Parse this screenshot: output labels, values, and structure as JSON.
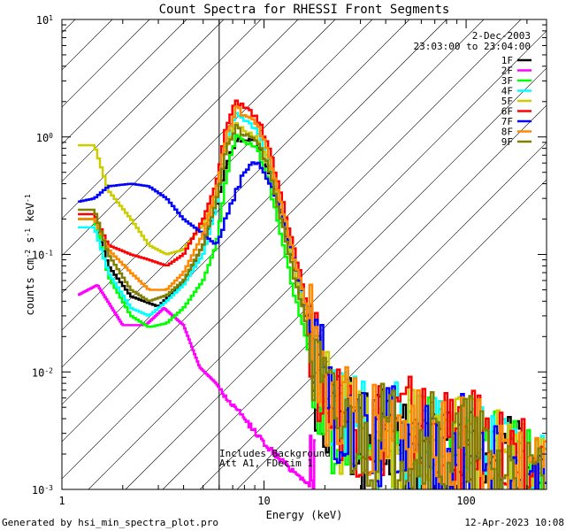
{
  "chart_data": {
    "type": "line",
    "title": "Count Spectra for RHESSI Front Segments",
    "xlabel": "Energy (keV)",
    "ylabel_base": "counts cm",
    "ylabel_sup1": "-2",
    "ylabel_mid1": " s",
    "ylabel_sup2": "-1",
    "ylabel_mid2": " keV",
    "ylabel_sup3": "-1",
    "xscale": "log",
    "yscale": "log",
    "xlim": [
      1,
      250
    ],
    "ylim": [
      0.001,
      10
    ],
    "x_ticks": [
      {
        "value": 1,
        "label": "1"
      },
      {
        "value": 10,
        "label": "10"
      },
      {
        "value": 100,
        "label": "100"
      }
    ],
    "y_ticks": [
      {
        "value": 0.001,
        "base": "10",
        "exp": "-3"
      },
      {
        "value": 0.01,
        "base": "10",
        "exp": "-2"
      },
      {
        "value": 0.1,
        "base": "10",
        "exp": "-1"
      },
      {
        "value": 1,
        "base": "10",
        "exp": "0"
      },
      {
        "value": 10,
        "base": "10",
        "exp": "1"
      }
    ],
    "hatched_region_max_energy": 6,
    "legend": {
      "date": "2-Dec-2003",
      "time_range": "23:03:00 to 23:04:00",
      "placement": "top-right"
    },
    "annotation_lines": [
      "Includes Background",
      "Att A1, FDecim 1"
    ],
    "series": [
      {
        "name": "1F",
        "color": "#000000",
        "anchors": [
          [
            1.2,
            0.2
          ],
          [
            1.45,
            0.2
          ],
          [
            1.7,
            0.08
          ],
          [
            2.2,
            0.044
          ],
          [
            3,
            0.036
          ],
          [
            4,
            0.058
          ],
          [
            5,
            0.12
          ],
          [
            5.8,
            0.25
          ],
          [
            6.5,
            0.6
          ],
          [
            7.3,
            0.95
          ],
          [
            8.2,
            0.95
          ],
          [
            9.2,
            0.9
          ],
          [
            10.5,
            0.55
          ],
          [
            12,
            0.25
          ],
          [
            14,
            0.08
          ],
          [
            16,
            0.03
          ],
          [
            18,
            0.009
          ],
          [
            22,
            0.004
          ],
          [
            28,
            0.0028
          ],
          [
            35,
            0.0023
          ],
          [
            45,
            0.0025
          ],
          [
            60,
            0.0022
          ],
          [
            80,
            0.0018
          ],
          [
            100,
            0.0021
          ],
          [
            140,
            0.0016
          ],
          [
            190,
            0.0012
          ],
          [
            250,
            0.001
          ]
        ],
        "noise": 0.6
      },
      {
        "name": "2F",
        "color": "#ff00ff",
        "anchors": [
          [
            1.2,
            0.045
          ],
          [
            1.5,
            0.055
          ],
          [
            2,
            0.025
          ],
          [
            2.6,
            0.025
          ],
          [
            3.2,
            0.035
          ],
          [
            4,
            0.025
          ],
          [
            4.8,
            0.011
          ],
          [
            5.8,
            0.008
          ],
          [
            6.5,
            0.006
          ],
          [
            8,
            0.004
          ],
          [
            10,
            0.0025
          ],
          [
            12,
            0.0018
          ],
          [
            15,
            0.0013
          ],
          [
            18,
            0.001
          ]
        ],
        "noise": 0.6
      },
      {
        "name": "3F",
        "color": "#00ff00",
        "anchors": [
          [
            1.2,
            0.2
          ],
          [
            1.45,
            0.2
          ],
          [
            1.7,
            0.065
          ],
          [
            2.2,
            0.03
          ],
          [
            2.7,
            0.024
          ],
          [
            3.3,
            0.026
          ],
          [
            4,
            0.035
          ],
          [
            5,
            0.06
          ],
          [
            5.8,
            0.12
          ],
          [
            6.5,
            0.45
          ],
          [
            7.3,
            1.05
          ],
          [
            8.2,
            0.9
          ],
          [
            9.2,
            0.8
          ],
          [
            10.5,
            0.45
          ],
          [
            12,
            0.15
          ],
          [
            14,
            0.05
          ],
          [
            16,
            0.02
          ],
          [
            18,
            0.007
          ],
          [
            22,
            0.0035
          ],
          [
            28,
            0.003
          ],
          [
            35,
            0.0025
          ],
          [
            45,
            0.0028
          ],
          [
            60,
            0.0024
          ],
          [
            80,
            0.002
          ],
          [
            100,
            0.0022
          ],
          [
            140,
            0.0016
          ],
          [
            190,
            0.0013
          ],
          [
            250,
            0.001
          ]
        ],
        "noise": 0.6
      },
      {
        "name": "4F",
        "color": "#00ffff",
        "anchors": [
          [
            1.2,
            0.17
          ],
          [
            1.45,
            0.17
          ],
          [
            1.7,
            0.07
          ],
          [
            2.2,
            0.035
          ],
          [
            2.7,
            0.03
          ],
          [
            3.3,
            0.04
          ],
          [
            4,
            0.055
          ],
          [
            5,
            0.1
          ],
          [
            5.8,
            0.25
          ],
          [
            6.5,
            0.9
          ],
          [
            7.3,
            1.6
          ],
          [
            8.2,
            1.35
          ],
          [
            9.2,
            1.15
          ],
          [
            10.5,
            0.65
          ],
          [
            12,
            0.28
          ],
          [
            14,
            0.09
          ],
          [
            16,
            0.035
          ],
          [
            18,
            0.01
          ],
          [
            22,
            0.0045
          ],
          [
            28,
            0.0032
          ],
          [
            35,
            0.0027
          ],
          [
            45,
            0.003
          ],
          [
            60,
            0.0025
          ],
          [
            80,
            0.002
          ],
          [
            100,
            0.0022
          ],
          [
            140,
            0.0017
          ],
          [
            190,
            0.0013
          ],
          [
            250,
            0.001
          ]
        ],
        "noise": 0.6
      },
      {
        "name": "5F",
        "color": "#cccc00",
        "anchors": [
          [
            1.2,
            0.85
          ],
          [
            1.45,
            0.85
          ],
          [
            1.7,
            0.35
          ],
          [
            2.2,
            0.2
          ],
          [
            2.7,
            0.12
          ],
          [
            3.3,
            0.1
          ],
          [
            4,
            0.11
          ],
          [
            5,
            0.18
          ],
          [
            5.8,
            0.3
          ],
          [
            6.5,
            0.8
          ],
          [
            7.3,
            1.3
          ],
          [
            8.2,
            1.1
          ],
          [
            9.2,
            1.0
          ],
          [
            10.5,
            0.6
          ],
          [
            12,
            0.25
          ],
          [
            14,
            0.08
          ],
          [
            16,
            0.03
          ],
          [
            18,
            0.009
          ],
          [
            22,
            0.0045
          ],
          [
            28,
            0.0035
          ],
          [
            35,
            0.003
          ],
          [
            45,
            0.0032
          ],
          [
            60,
            0.0028
          ],
          [
            80,
            0.0022
          ],
          [
            100,
            0.0024
          ],
          [
            140,
            0.0018
          ],
          [
            190,
            0.0014
          ],
          [
            250,
            0.0011
          ]
        ],
        "noise": 0.6
      },
      {
        "name": "6F",
        "color": "#ff0000",
        "anchors": [
          [
            1.2,
            0.22
          ],
          [
            1.45,
            0.22
          ],
          [
            1.7,
            0.12
          ],
          [
            2.2,
            0.1
          ],
          [
            2.7,
            0.09
          ],
          [
            3.3,
            0.08
          ],
          [
            4,
            0.1
          ],
          [
            5,
            0.2
          ],
          [
            5.8,
            0.4
          ],
          [
            6.5,
            1.2
          ],
          [
            7.3,
            2.0
          ],
          [
            8.2,
            1.75
          ],
          [
            9.2,
            1.5
          ],
          [
            10.5,
            0.85
          ],
          [
            12,
            0.35
          ],
          [
            14,
            0.12
          ],
          [
            16,
            0.045
          ],
          [
            18,
            0.013
          ],
          [
            22,
            0.005
          ],
          [
            28,
            0.0035
          ],
          [
            35,
            0.003
          ],
          [
            45,
            0.0033
          ],
          [
            60,
            0.0028
          ],
          [
            80,
            0.0022
          ],
          [
            100,
            0.0025
          ],
          [
            140,
            0.0018
          ],
          [
            190,
            0.0014
          ],
          [
            250,
            0.0011
          ]
        ],
        "noise": 0.6
      },
      {
        "name": "7F",
        "color": "#0000ff",
        "anchors": [
          [
            1.2,
            0.28
          ],
          [
            1.45,
            0.3
          ],
          [
            1.7,
            0.38
          ],
          [
            2.2,
            0.4
          ],
          [
            2.7,
            0.38
          ],
          [
            3.3,
            0.3
          ],
          [
            4,
            0.2
          ],
          [
            5,
            0.15
          ],
          [
            5.8,
            0.12
          ],
          [
            6.5,
            0.2
          ],
          [
            7.3,
            0.35
          ],
          [
            8.2,
            0.55
          ],
          [
            9.2,
            0.6
          ],
          [
            10.5,
            0.45
          ],
          [
            12,
            0.25
          ],
          [
            14,
            0.1
          ],
          [
            16,
            0.04
          ],
          [
            18,
            0.012
          ],
          [
            22,
            0.005
          ],
          [
            28,
            0.003
          ],
          [
            35,
            0.0025
          ],
          [
            45,
            0.0028
          ],
          [
            60,
            0.0024
          ],
          [
            80,
            0.002
          ],
          [
            100,
            0.0022
          ],
          [
            140,
            0.0016
          ],
          [
            190,
            0.0013
          ],
          [
            250,
            0.001
          ]
        ],
        "noise": 0.6
      },
      {
        "name": "8F",
        "color": "#ff8800",
        "anchors": [
          [
            1.2,
            0.2
          ],
          [
            1.45,
            0.2
          ],
          [
            1.7,
            0.11
          ],
          [
            2.2,
            0.07
          ],
          [
            2.7,
            0.05
          ],
          [
            3.3,
            0.05
          ],
          [
            4,
            0.07
          ],
          [
            5,
            0.15
          ],
          [
            5.8,
            0.35
          ],
          [
            6.5,
            1.0
          ],
          [
            7.3,
            1.75
          ],
          [
            8.2,
            1.5
          ],
          [
            9.2,
            1.3
          ],
          [
            10.5,
            0.75
          ],
          [
            12,
            0.3
          ],
          [
            14,
            0.1
          ],
          [
            16,
            0.04
          ],
          [
            18,
            0.011
          ],
          [
            22,
            0.0045
          ],
          [
            28,
            0.0033
          ],
          [
            35,
            0.0028
          ],
          [
            45,
            0.0031
          ],
          [
            60,
            0.0026
          ],
          [
            80,
            0.0021
          ],
          [
            100,
            0.0023
          ],
          [
            140,
            0.0017
          ],
          [
            190,
            0.0013
          ],
          [
            250,
            0.001
          ]
        ],
        "noise": 0.6
      },
      {
        "name": "9F",
        "color": "#808000",
        "anchors": [
          [
            1.2,
            0.24
          ],
          [
            1.45,
            0.24
          ],
          [
            1.7,
            0.1
          ],
          [
            2.2,
            0.05
          ],
          [
            2.7,
            0.04
          ],
          [
            3.3,
            0.045
          ],
          [
            4,
            0.06
          ],
          [
            5,
            0.12
          ],
          [
            5.8,
            0.28
          ],
          [
            6.5,
            0.8
          ],
          [
            7.3,
            1.2
          ],
          [
            8.2,
            1.0
          ],
          [
            9.2,
            0.95
          ],
          [
            10.5,
            0.55
          ],
          [
            12,
            0.22
          ],
          [
            14,
            0.07
          ],
          [
            16,
            0.028
          ],
          [
            18,
            0.009
          ],
          [
            22,
            0.004
          ],
          [
            28,
            0.003
          ],
          [
            35,
            0.0026
          ],
          [
            45,
            0.0029
          ],
          [
            60,
            0.0025
          ],
          [
            80,
            0.002
          ],
          [
            100,
            0.0022
          ],
          [
            140,
            0.0016
          ],
          [
            190,
            0.0012
          ],
          [
            250,
            0.001
          ]
        ],
        "noise": 0.6
      }
    ]
  },
  "footer": {
    "generated_by": "Generated by hsi_min_spectra_plot.pro",
    "date": "12-Apr-2023 10:08"
  }
}
